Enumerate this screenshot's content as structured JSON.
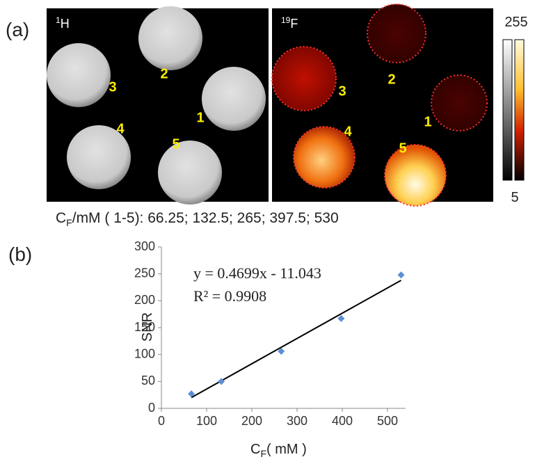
{
  "panel_a": {
    "label": "(a)",
    "images": [
      {
        "nucleus": {
          "mass": "1",
          "symbol": "H"
        },
        "disc_labels": [
          "1",
          "2",
          "3",
          "4",
          "5"
        ]
      },
      {
        "nucleus": {
          "mass": "19",
          "symbol": "F"
        },
        "disc_labels": [
          "1",
          "2",
          "3",
          "4",
          "5"
        ]
      }
    ],
    "colorbar": {
      "max": "255",
      "min": "5"
    },
    "caption": {
      "base": "C",
      "sub": "F",
      "rest": "/mM ( 1-5): 66.25; 132.5; 265; 397.5; 530"
    }
  },
  "chart_data": {
    "type": "scatter",
    "panel_label": "(b)",
    "x_label": {
      "base": "C",
      "sub": "F",
      "rest": "( mM )"
    },
    "y_label": "SNR",
    "x": [
      66.25,
      132.5,
      265,
      397.5,
      530
    ],
    "series": [
      {
        "values": [
          27,
          50,
          106,
          167,
          248
        ],
        "color": "#5b8fd6"
      }
    ],
    "trendline": {
      "slope": 0.4699,
      "intercept": -11.043,
      "color": "#000000",
      "equation": "y = 0.4699x - 11.043",
      "r_squared": "R² = 0.9908"
    },
    "xlim": [
      0,
      540
    ],
    "xticks": [
      0,
      100,
      200,
      300,
      400,
      500
    ],
    "ylim": [
      0,
      300
    ],
    "yticks": [
      0,
      50,
      100,
      150,
      200,
      250,
      300
    ]
  }
}
